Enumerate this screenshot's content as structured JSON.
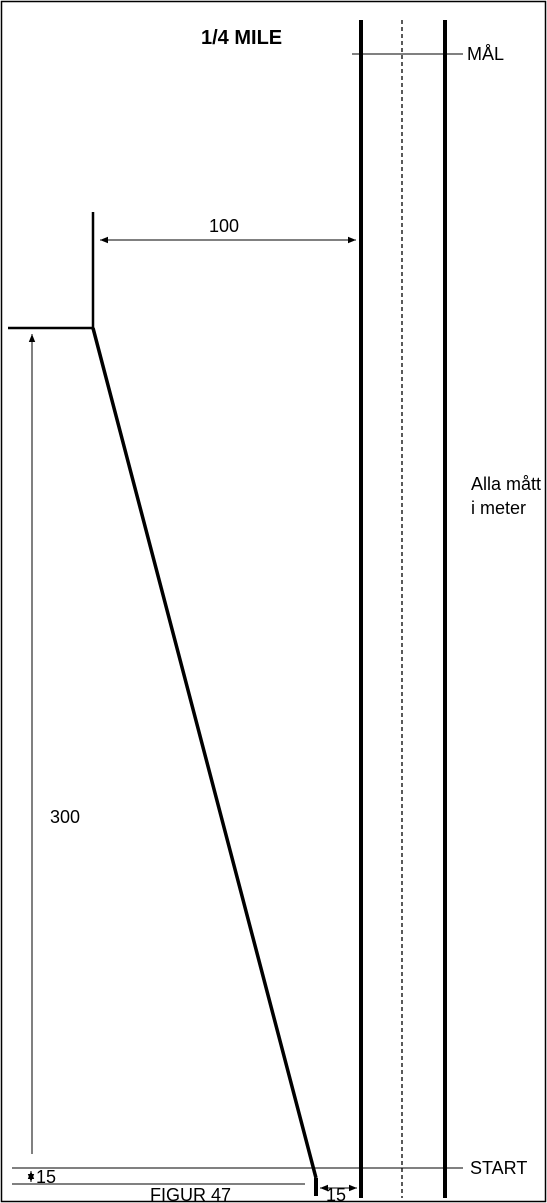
{
  "title": "1/4 MILE",
  "finish_label": "MÅL",
  "start_label": "START",
  "note_line1": "Alla mått",
  "note_line2": "i meter",
  "dim_width": "100",
  "dim_length": "300",
  "dim_start_gap": "15",
  "dim_bottom_gap": "15",
  "figure_label": "FIGUR 47",
  "colors": {
    "line": "#000000",
    "background": "#ffffff"
  }
}
